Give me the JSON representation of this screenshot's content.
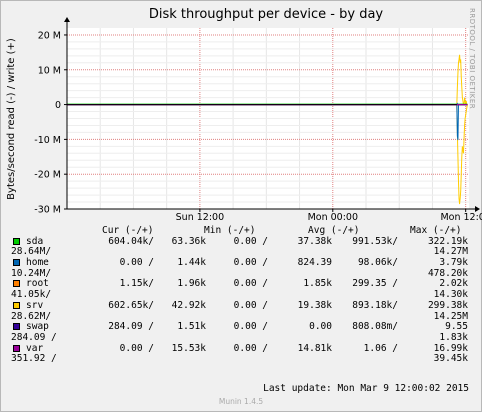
{
  "chart_data": {
    "type": "line",
    "title": "Disk throughput per device - by day",
    "ylabel": "Bytes/second read (-) / write (+)",
    "y_ticks": [
      "20 M",
      "10 M",
      "0",
      "-10 M",
      "-20 M",
      "-30 M"
    ],
    "y_tick_values": [
      20,
      10,
      0,
      -10,
      -20,
      -30
    ],
    "ylim": [
      -30,
      22
    ],
    "x_ticks": [
      {
        "label": "Sun 12:00",
        "t": 12
      },
      {
        "label": "Mon 00:00",
        "t": 24
      },
      {
        "label": "Mon 12:00",
        "t": 36
      }
    ],
    "xlim": [
      0,
      36.3
    ],
    "grid": true,
    "side_text": "RRDTOOL / TOBI OETIKER",
    "series": [
      {
        "name": "srv",
        "color": "#ffcc00",
        "x": [
          0,
          35.2,
          35.25,
          35.3,
          35.35,
          35.4,
          35.45,
          35.5,
          35.55,
          35.6,
          35.65,
          35.7,
          35.75,
          35.8,
          35.85,
          35.9,
          35.95,
          36.0,
          36.05,
          36.1,
          36.15
        ],
        "pos": [
          0,
          0,
          5,
          9,
          12,
          13,
          14.3,
          12,
          13,
          8,
          5,
          2,
          1,
          0,
          0,
          2,
          1,
          0,
          1,
          0,
          0
        ],
        "neg": [
          0,
          0,
          -8,
          -15,
          -22,
          -27,
          -28.6,
          -27,
          -25,
          -20,
          -15,
          -12,
          -13,
          -14,
          -10,
          -6,
          -4,
          -3,
          -2,
          -1,
          0
        ]
      },
      {
        "name": "sda",
        "color": "#00cc00",
        "x": [
          0,
          35.2,
          36.15
        ],
        "pos": [
          0,
          0,
          0
        ],
        "neg": [
          0,
          0,
          0
        ]
      },
      {
        "name": "home",
        "color": "#0066b3",
        "x": [
          0,
          35.2,
          35.25,
          35.3,
          35.35,
          36.15
        ],
        "pos": [
          0,
          0,
          0.3,
          0,
          0,
          0
        ],
        "neg": [
          0,
          0,
          -9,
          -10.2,
          0,
          0
        ]
      },
      {
        "name": "root",
        "color": "#ff8000",
        "x": [
          0,
          36.15
        ],
        "pos": [
          0,
          0
        ],
        "neg": [
          0,
          0
        ]
      },
      {
        "name": "swap",
        "color": "#330099",
        "x": [
          0,
          36.15
        ],
        "pos": [
          0,
          0
        ],
        "neg": [
          0,
          0
        ]
      },
      {
        "name": "var",
        "color": "#990099",
        "x": [
          0,
          36.15
        ],
        "pos": [
          0,
          0
        ],
        "neg": [
          0,
          0
        ]
      }
    ]
  },
  "legend": {
    "headers": [
      "Cur (-/+)",
      "Min (-/+)",
      "Avg (-/+)",
      "Max (-/+)"
    ],
    "rows": [
      {
        "name": "sda",
        "color": "#00cc00",
        "cur": "604.04k/",
        "min_read": "63.36k",
        "min_write": "0.00 /",
        "avg_read": "37.38k",
        "avg_write": "991.53k/",
        "max_read": "322.19k",
        "cont": "28.64M/",
        "max_write": "14.27M"
      },
      {
        "name": "home",
        "color": "#0066b3",
        "cur": "0.00 /",
        "min_read": "1.44k",
        "min_write": "0.00 /",
        "avg_read": "824.39",
        "avg_write": "98.06k/",
        "max_read": "3.79k",
        "cont": "10.24M/",
        "max_write": "478.20k"
      },
      {
        "name": "root",
        "color": "#ff8000",
        "cur": "1.15k/",
        "min_read": "1.96k",
        "min_write": "0.00 /",
        "avg_read": "1.85k",
        "avg_write": "299.35 /",
        "max_read": "2.02k",
        "cont": "41.05k/",
        "max_write": "14.30k"
      },
      {
        "name": "srv",
        "color": "#ffcc00",
        "cur": "602.65k/",
        "min_read": "42.92k",
        "min_write": "0.00 /",
        "avg_read": "19.38k",
        "avg_write": "893.18k/",
        "max_read": "299.38k",
        "cont": "28.62M/",
        "max_write": "14.25M"
      },
      {
        "name": "swap",
        "color": "#330099",
        "cur": "284.09 /",
        "min_read": "1.51k",
        "min_write": "0.00 /",
        "avg_read": "0.00",
        "avg_write": "808.08m/",
        "max_read": "9.55",
        "cont": "284.09 /",
        "max_write": "1.83k"
      },
      {
        "name": "var",
        "color": "#990099",
        "cur": "0.00 /",
        "min_read": "15.53k",
        "min_write": "0.00 /",
        "avg_read": "14.81k",
        "avg_write": "1.06 /",
        "max_read": "16.99k",
        "cont": "351.92 /",
        "max_write": "39.45k"
      }
    ],
    "last_update": "Last update:  Mon Mar  9 12:00:02 2015",
    "footer": "Munin 1.4.5"
  }
}
